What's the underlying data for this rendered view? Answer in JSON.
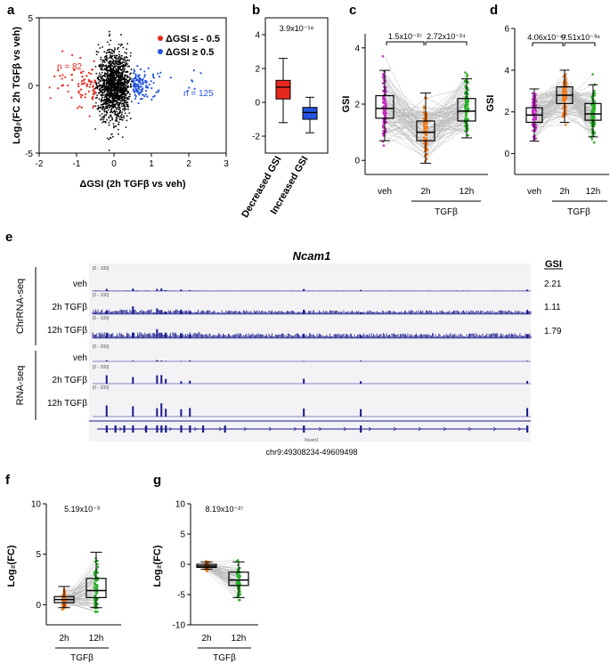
{
  "panels": {
    "a": {
      "label": "a",
      "xlabel": "ΔGSI (2h TGFβ vs veh)",
      "ylabel": "Log₂(FC 2h TGFβ vs veh)",
      "legend": [
        "ΔGSI ≤ - 0.5",
        "ΔGSI ≥ 0.5"
      ],
      "n_left": "n = 82",
      "n_right": "n = 125",
      "xticks": [
        "-2",
        "-1",
        "0",
        "1",
        "2",
        "3"
      ],
      "yticks": [
        "5",
        "0",
        "-5"
      ]
    },
    "b": {
      "label": "b",
      "pvalue": "3.9x10⁻¹⁸",
      "categories": [
        "Decreased GSI",
        "Increased GSI"
      ],
      "yticks": [
        "4",
        "2",
        "0",
        "-2"
      ]
    },
    "c": {
      "label": "c",
      "ylabel": "GSI",
      "categories": [
        "veh",
        "2h",
        "12h"
      ],
      "group": "TGFβ",
      "p1": "1.5x10⁻³⁷",
      "p2": "2.72x10⁻²⁴",
      "yticks": [
        "4",
        "2",
        "0"
      ]
    },
    "d": {
      "label": "d",
      "ylabel": "GSI",
      "categories": [
        "veh",
        "2h",
        "12h"
      ],
      "group": "TGFβ",
      "p1": "4.06x10⁻⁶²",
      "p2": "9.51x10⁻³⁹",
      "yticks": [
        "6",
        "4",
        "2",
        "0"
      ]
    },
    "e": {
      "label": "e",
      "gene": "Ncam1",
      "gsi_header": "GSI",
      "group1": "ChrRNA-seq",
      "group2": "RNA-seq",
      "tracks": [
        {
          "name": "veh",
          "range": "[0 - 100]",
          "gsi": "2.21"
        },
        {
          "name": "2h TGFβ",
          "range": "[0 - 100]",
          "gsi": "1.11"
        },
        {
          "name": "12h TGFβ",
          "range": "[0 - 100]",
          "gsi": "1.79"
        },
        {
          "name": "veh",
          "range": "[0 - 200]",
          "gsi": ""
        },
        {
          "name": "2h TGFβ",
          "range": "[0 - 200]",
          "gsi": ""
        },
        {
          "name": "12h TGFβ",
          "range": "[0 - 200]",
          "gsi": ""
        }
      ],
      "gene_small": "Ncam1",
      "coords": "chr9:49308234-49609498"
    },
    "f": {
      "label": "f",
      "ylabel": "Log₂(FC)",
      "categories": [
        "2h",
        "12h"
      ],
      "group": "TGFβ",
      "pvalue": "5.19x10⁻³",
      "yticks": [
        "10",
        "5",
        "0"
      ]
    },
    "g": {
      "label": "g",
      "ylabel": "Log₂(FC)",
      "categories": [
        "2h",
        "12h"
      ],
      "group": "TGFβ",
      "pvalue": "8.19x10⁻²⁷",
      "yticks": [
        "10",
        "5",
        "0",
        "-5",
        "-10"
      ]
    }
  },
  "chart_data": [
    {
      "type": "scatter",
      "panel": "a",
      "xlim": [
        -2,
        3
      ],
      "ylim": [
        -5,
        5
      ],
      "series": [
        {
          "name": "ΔGSI ≤ - 0.5",
          "color": "#e8281e",
          "count": 82
        },
        {
          "name": "ΔGSI ≥ 0.5",
          "color": "#2255e0",
          "count": 125
        }
      ]
    },
    {
      "type": "box",
      "panel": "b",
      "ylim": [
        -3,
        5
      ],
      "categories": [
        "Decreased GSI",
        "Increased GSI"
      ],
      "boxes": [
        {
          "min": -1.2,
          "q1": 0.2,
          "median": 0.9,
          "q3": 1.3,
          "max": 2.6,
          "color": "#e8281e"
        },
        {
          "min": -1.8,
          "q1": -1.0,
          "median": -0.6,
          "q3": -0.3,
          "max": 0.3,
          "color": "#2255e0"
        }
      ]
    },
    {
      "type": "box",
      "panel": "c",
      "ylim": [
        -0.5,
        4.5
      ],
      "categories": [
        "veh",
        "2h",
        "12h"
      ],
      "boxes": [
        {
          "min": 0.7,
          "q1": 1.5,
          "median": 1.85,
          "q3": 2.3,
          "max": 3.2,
          "color": "#c02cc0"
        },
        {
          "min": -0.1,
          "q1": 0.7,
          "median": 1.0,
          "q3": 1.4,
          "max": 2.4,
          "color": "#f07a1a"
        },
        {
          "min": 0.8,
          "q1": 1.4,
          "median": 1.75,
          "q3": 2.2,
          "max": 2.9,
          "color": "#28b028"
        }
      ]
    },
    {
      "type": "box",
      "panel": "d",
      "ylim": [
        -1,
        6
      ],
      "categories": [
        "veh",
        "2h",
        "12h"
      ],
      "boxes": [
        {
          "min": 0.6,
          "q1": 1.5,
          "median": 1.85,
          "q3": 2.2,
          "max": 3.1,
          "color": "#c02cc0"
        },
        {
          "min": 1.5,
          "q1": 2.4,
          "median": 2.8,
          "q3": 3.2,
          "max": 4.0,
          "color": "#f07a1a"
        },
        {
          "min": 0.8,
          "q1": 1.6,
          "median": 1.9,
          "q3": 2.4,
          "max": 3.3,
          "color": "#28b028"
        }
      ]
    },
    {
      "type": "box",
      "panel": "f",
      "ylim": [
        -2,
        10
      ],
      "categories": [
        "2h",
        "12h"
      ],
      "boxes": [
        {
          "min": -0.3,
          "q1": 0.2,
          "median": 0.5,
          "q3": 0.8,
          "max": 1.8,
          "color": "#f07a1a"
        },
        {
          "min": -0.3,
          "q1": 0.7,
          "median": 1.4,
          "q3": 2.6,
          "max": 5.2,
          "color": "#28b028"
        }
      ]
    },
    {
      "type": "box",
      "panel": "g",
      "ylim": [
        -10,
        10
      ],
      "categories": [
        "2h",
        "12h"
      ],
      "boxes": [
        {
          "min": -0.8,
          "q1": -0.5,
          "median": -0.3,
          "q3": 0.0,
          "max": 0.4,
          "color": "#f07a1a"
        },
        {
          "min": -5.5,
          "q1": -3.5,
          "median": -2.6,
          "q3": -1.3,
          "max": 0.4,
          "color": "#28b028"
        }
      ]
    }
  ]
}
